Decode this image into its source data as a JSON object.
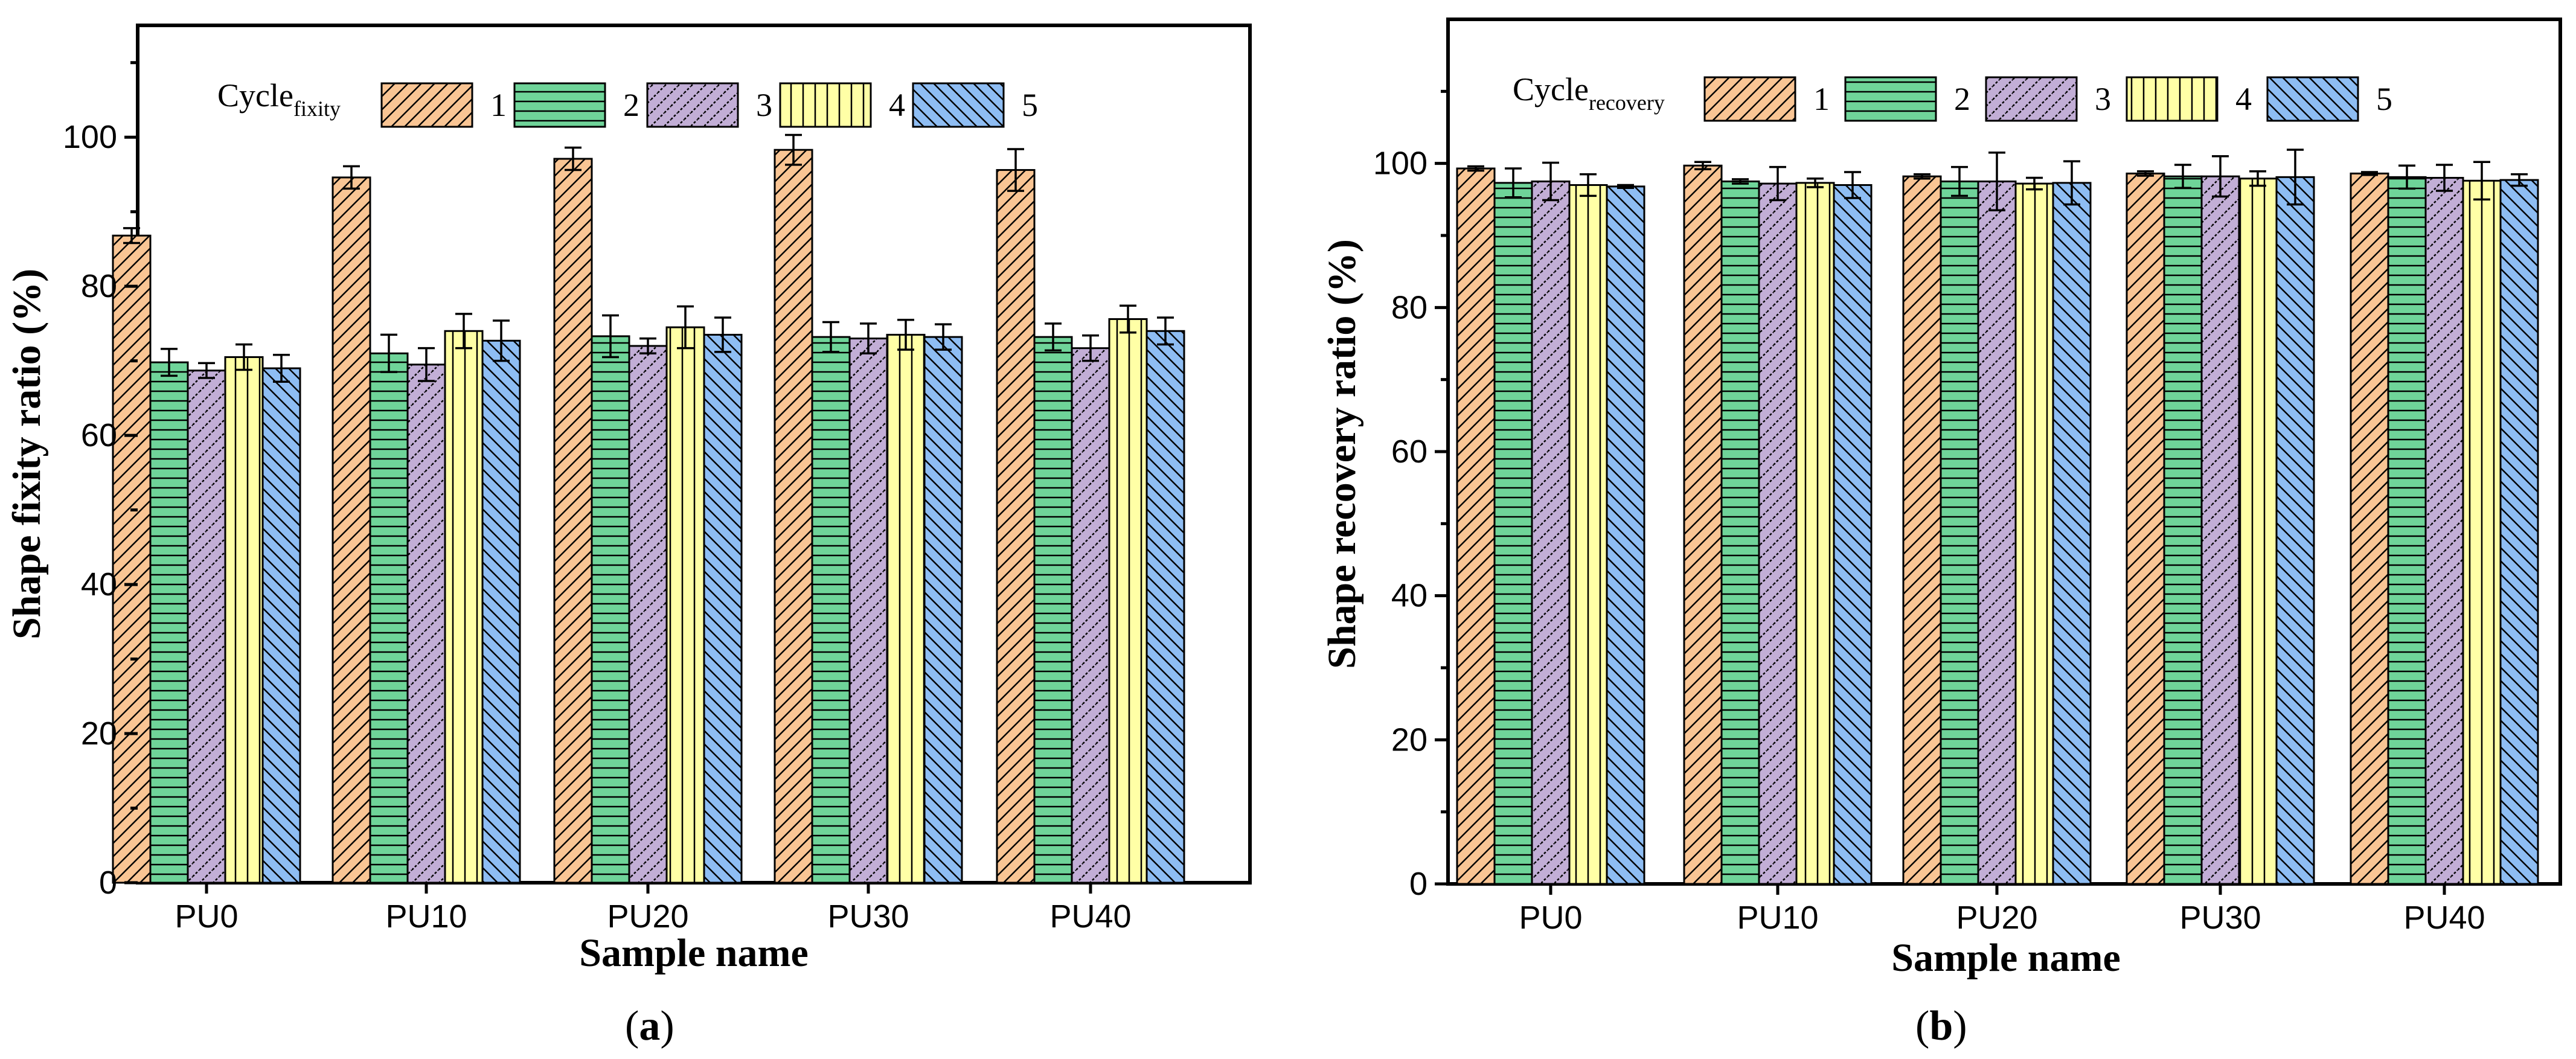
{
  "chart_data": [
    {
      "id": "a",
      "type": "bar",
      "caption_letter": "a",
      "xlabel": "Sample name",
      "ylabel": "Shape fixity ratio (%)",
      "legend_title": "Cycle",
      "legend_title_sub": "fixity",
      "ylim": [
        0,
        115
      ],
      "yticks": [
        0,
        20,
        40,
        60,
        80,
        100
      ],
      "categories": [
        "PU0",
        "PU10",
        "PU20",
        "PU30",
        "PU40"
      ],
      "series": [
        {
          "name": "1",
          "values": [
            86.8,
            94.6,
            97.1,
            98.3,
            95.6
          ],
          "errors": [
            1.0,
            1.5,
            1.5,
            2.0,
            2.8
          ]
        },
        {
          "name": "2",
          "values": [
            69.8,
            71.0,
            73.3,
            73.2,
            73.2
          ],
          "errors": [
            1.8,
            2.5,
            2.8,
            2.0,
            1.8
          ]
        },
        {
          "name": "3",
          "values": [
            68.7,
            69.5,
            72.0,
            73.0,
            71.7
          ],
          "errors": [
            1.0,
            2.2,
            1.0,
            2.0,
            1.7
          ]
        },
        {
          "name": "4",
          "values": [
            70.5,
            74.0,
            74.5,
            73.5,
            75.6
          ],
          "errors": [
            1.7,
            2.3,
            2.8,
            2.0,
            1.8
          ]
        },
        {
          "name": "5",
          "values": [
            69.0,
            72.7,
            73.5,
            73.2,
            74.0
          ],
          "errors": [
            1.8,
            2.7,
            2.3,
            1.7,
            1.8
          ]
        }
      ]
    },
    {
      "id": "b",
      "type": "bar",
      "caption_letter": "b",
      "xlabel": "Sample name",
      "ylabel": "Shape recovery ratio (%)",
      "legend_title": "Cycle",
      "legend_title_sub": "recovery",
      "ylim": [
        0,
        120
      ],
      "yticks": [
        0,
        20,
        40,
        60,
        80,
        100
      ],
      "categories": [
        "PU0",
        "PU10",
        "PU20",
        "PU30",
        "PU40"
      ],
      "series": [
        {
          "name": "1",
          "values": [
            99.3,
            99.7,
            98.2,
            98.6,
            98.6
          ],
          "errors": [
            0.3,
            0.5,
            0.3,
            0.3,
            0.2
          ]
        },
        {
          "name": "2",
          "values": [
            97.3,
            97.5,
            97.5,
            98.2,
            98.1
          ],
          "errors": [
            2.0,
            0.3,
            2.0,
            1.6,
            1.6
          ]
        },
        {
          "name": "3",
          "values": [
            97.5,
            97.2,
            97.5,
            98.2,
            98.0
          ],
          "errors": [
            2.6,
            2.3,
            4.0,
            2.8,
            1.8
          ]
        },
        {
          "name": "4",
          "values": [
            97.0,
            97.3,
            97.2,
            97.9,
            97.6
          ],
          "errors": [
            1.5,
            0.6,
            0.8,
            1.0,
            2.6
          ]
        },
        {
          "name": "5",
          "values": [
            96.8,
            97.0,
            97.3,
            98.1,
            97.7
          ],
          "errors": [
            0.2,
            1.8,
            3.0,
            3.8,
            0.8
          ]
        }
      ]
    }
  ],
  "styles": {
    "series_colors": [
      "#F9C594",
      "#6FD499",
      "#C2AED6",
      "#FFFFA6",
      "#8EBDF3"
    ],
    "series_patterns": [
      "diag-up",
      "horizontal",
      "checker",
      "vertical",
      "diag-down"
    ]
  }
}
